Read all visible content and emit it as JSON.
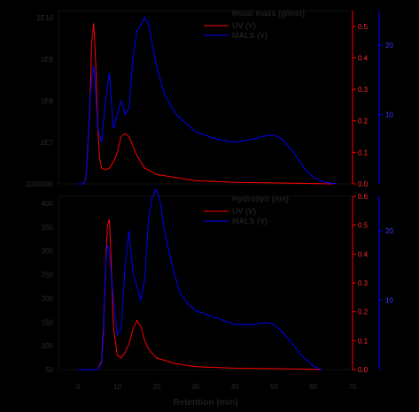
{
  "chart_data": [
    {
      "type": "line",
      "title": "Molar mass (g/mol)",
      "xlim": [
        -5,
        70
      ],
      "left_axis": {
        "label": "",
        "ticks": [
          "1000000",
          "1E7",
          "1E8",
          "1E9",
          "1E10"
        ]
      },
      "ylim_uv": [
        0,
        0.55
      ],
      "ylim_mals": [
        0,
        25
      ],
      "uv_ticks": [
        "0.0",
        "0.1",
        "0.2",
        "0.3",
        "0.4",
        "0.5"
      ],
      "mals_ticks": [
        "10",
        "20"
      ],
      "series": [
        {
          "name": "UV (V)",
          "color": "#ff0000",
          "axis": "uv",
          "x": [
            0,
            1.5,
            2.0,
            2.5,
            3.0,
            3.5,
            4.0,
            4.5,
            5.0,
            5.5,
            6.0,
            7.0,
            8.0,
            9.0,
            10.0,
            11.0,
            12.0,
            13.0,
            14.0,
            15.0,
            17.0,
            20.0,
            25.0,
            30.0,
            40.0,
            50.0,
            55.0,
            60.0,
            65.0
          ],
          "values": [
            0,
            0,
            0.02,
            0.12,
            0.25,
            0.45,
            0.51,
            0.38,
            0.18,
            0.08,
            0.05,
            0.045,
            0.05,
            0.07,
            0.1,
            0.15,
            0.16,
            0.15,
            0.12,
            0.09,
            0.05,
            0.03,
            0.02,
            0.01,
            0.005,
            0.003,
            0.002,
            0.001,
            0
          ]
        },
        {
          "name": "MALS (V)",
          "color": "#0000ff",
          "axis": "mals",
          "x": [
            0,
            1.5,
            2.0,
            2.5,
            3.0,
            3.5,
            4.0,
            4.5,
            5.0,
            6.0,
            7.0,
            8.0,
            9.0,
            10.0,
            11.0,
            12.0,
            13.0,
            14.0,
            15.0,
            16.0,
            17.0,
            18.0,
            19.0,
            20.0,
            22.0,
            25.0,
            28.0,
            30.0,
            35.0,
            40.0,
            45.0,
            48.0,
            50.0,
            52.0,
            55.0,
            58.0,
            60.0,
            63.0,
            66.0
          ],
          "values": [
            0,
            0,
            1,
            5,
            12,
            15,
            17,
            13,
            8,
            6,
            12,
            16,
            8,
            10,
            12,
            10,
            11,
            18,
            22,
            23,
            24,
            23,
            20,
            17,
            13,
            10,
            8.5,
            7.5,
            6.5,
            6.0,
            6.5,
            7.0,
            7.0,
            6.5,
            4.5,
            2.0,
            1.0,
            0.2,
            0
          ]
        }
      ]
    },
    {
      "type": "line",
      "title": "Hydrodyn (nm)",
      "xlim": [
        -5,
        70
      ],
      "xlabel": "Retention (min)",
      "x_ticks": [
        "0",
        "10",
        "20",
        "30",
        "40",
        "50",
        "60",
        "70"
      ],
      "left_axis": {
        "label": "",
        "ticks": [
          "50",
          "100",
          "150",
          "200",
          "250",
          "300",
          "350",
          "400"
        ]
      },
      "ylim_uv": [
        0,
        0.6
      ],
      "ylim_mals": [
        0,
        25
      ],
      "uv_ticks": [
        "0.0",
        "0.1",
        "0.2",
        "0.3",
        "0.4",
        "0.5",
        "0.6"
      ],
      "mals_ticks": [
        "10",
        "20"
      ],
      "series": [
        {
          "name": "UV (V)",
          "color": "#ff0000",
          "axis": "uv",
          "x": [
            0,
            5.0,
            6.0,
            6.5,
            7.0,
            7.5,
            8.0,
            8.5,
            9.0,
            10.0,
            11.0,
            12.0,
            13.0,
            14.0,
            15.0,
            16.0,
            17.0,
            18.0,
            20.0,
            25.0,
            30.0,
            40.0,
            50.0,
            55.0,
            60.0,
            62.0
          ],
          "values": [
            0,
            0,
            0.03,
            0.15,
            0.35,
            0.5,
            0.52,
            0.35,
            0.15,
            0.05,
            0.04,
            0.06,
            0.09,
            0.14,
            0.17,
            0.15,
            0.1,
            0.07,
            0.04,
            0.02,
            0.01,
            0.005,
            0.003,
            0.002,
            0.001,
            0
          ]
        },
        {
          "name": "MALS (V)",
          "color": "#0000ff",
          "axis": "mals",
          "x": [
            0,
            5.0,
            6.0,
            6.5,
            7.0,
            7.5,
            8.0,
            9.0,
            10.0,
            11.0,
            12.0,
            13.0,
            14.0,
            15.0,
            16.0,
            17.0,
            18.0,
            19.0,
            20.0,
            21.0,
            22.0,
            24.0,
            26.0,
            28.0,
            30.0,
            35.0,
            40.0,
            45.0,
            48.0,
            50.0,
            52.0,
            55.0,
            57.0,
            60.0,
            62.0
          ],
          "values": [
            0,
            0,
            1,
            5,
            15,
            18,
            17,
            10,
            5,
            6,
            15,
            20,
            14,
            12,
            10,
            13,
            22,
            25,
            26,
            24,
            20,
            15,
            11,
            9.5,
            8.5,
            7.5,
            6.5,
            6.5,
            6.8,
            6.5,
            5.5,
            3.5,
            2.0,
            0.5,
            0
          ]
        }
      ]
    }
  ]
}
